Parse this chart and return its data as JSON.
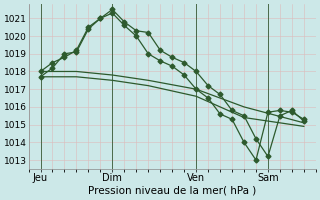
{
  "bg_color": "#cce8e8",
  "plot_bg": "#cce8e8",
  "grid_color": "#ddbbbb",
  "line_color": "#2d5a2d",
  "xlabel": "Pression niveau de la mer( hPa )",
  "ylim": [
    1012.5,
    1021.8
  ],
  "yticks": [
    1013,
    1014,
    1015,
    1016,
    1017,
    1018,
    1019,
    1020,
    1021
  ],
  "xlim": [
    0,
    12.0
  ],
  "xtick_labels": [
    "Jeu",
    "Dim",
    "Ven",
    "Sam"
  ],
  "xtick_positions": [
    0.5,
    3.5,
    7.0,
    10.0
  ],
  "vlines_x": [
    0.5,
    3.5,
    7.0,
    10.0
  ],
  "line1_x": [
    0.5,
    1.0,
    1.5,
    2.0,
    2.5,
    3.0,
    3.5,
    4.0,
    4.5,
    5.0,
    5.5,
    6.0,
    6.5,
    7.0,
    7.5,
    8.0,
    8.5,
    9.0,
    9.5,
    10.0,
    10.5,
    11.0,
    11.5
  ],
  "line1_y": [
    1018.0,
    1018.5,
    1018.8,
    1019.2,
    1020.5,
    1021.0,
    1021.5,
    1020.8,
    1020.3,
    1020.2,
    1019.2,
    1018.8,
    1018.5,
    1018.0,
    1017.2,
    1016.7,
    1015.8,
    1015.5,
    1014.2,
    1013.2,
    1015.5,
    1015.8,
    1015.2
  ],
  "line2_x": [
    0.5,
    1.0,
    1.5,
    2.0,
    2.5,
    3.0,
    3.5,
    4.0,
    4.5,
    5.0,
    5.5,
    6.0,
    6.5,
    7.0,
    7.5,
    8.0,
    8.5,
    9.0,
    9.5,
    10.0,
    10.5,
    11.0,
    11.5
  ],
  "line2_y": [
    1017.7,
    1018.2,
    1019.0,
    1019.1,
    1020.4,
    1021.0,
    1021.3,
    1020.6,
    1020.0,
    1019.0,
    1018.6,
    1018.3,
    1017.8,
    1017.0,
    1016.5,
    1015.6,
    1015.3,
    1014.0,
    1013.0,
    1015.7,
    1015.8,
    1015.7,
    1015.3
  ],
  "line3_x": [
    0.5,
    2.0,
    3.5,
    5.0,
    7.0,
    9.0,
    11.5
  ],
  "line3_y": [
    1018.0,
    1018.0,
    1017.8,
    1017.5,
    1017.0,
    1016.0,
    1015.1
  ],
  "line4_x": [
    0.5,
    2.0,
    3.5,
    5.0,
    7.0,
    9.0,
    11.5
  ],
  "line4_y": [
    1017.7,
    1017.7,
    1017.5,
    1017.2,
    1016.6,
    1015.4,
    1014.9
  ],
  "marker": "D",
  "markersize": 2.5,
  "linewidth": 0.9
}
